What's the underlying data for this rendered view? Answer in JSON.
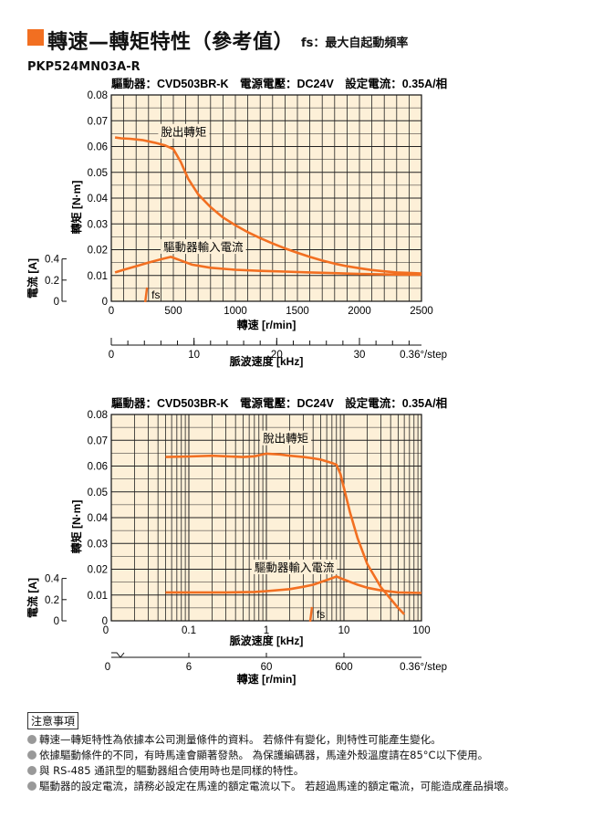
{
  "header": {
    "title": "轉速—轉矩特性（參考值）",
    "subtitle": "fs：最大自起動頻率"
  },
  "model": "PKP524MN03A-R",
  "colors": {
    "accent": "#f26f21",
    "grid_bg": "#fdf0d8",
    "curve": "#f26f21"
  },
  "notes": {
    "title": "注意事項",
    "items": [
      "轉速—轉矩特性為依據本公司測量條件的資料。 若條件有變化，則特性可能產生變化。",
      "依據驅動條件的不同，有時馬達會顯著發熱。 為保護編碼器，馬達外殼溫度請在85°C以下使用。",
      "與 RS-485 通訊型的驅動器組合使用時也是同樣的特性。",
      "驅動器的設定電流，請務必設定在馬達的額定電流以下。 若超過馬達的額定電流，可能造成產品損壞。"
    ]
  },
  "chart_data": [
    {
      "type": "line",
      "x_scale": "linear",
      "condition": "驅動器：CVD503BR-K　電源電壓：DC24V　設定電流：0.35A/相",
      "xlabel": "轉速 [r/min]",
      "ylabel": "轉矩 [N·m]",
      "y2label": "電流 [A]",
      "x2label": "脈波速度 [kHz]",
      "xlim": [
        0,
        2500
      ],
      "ylim": [
        0,
        0.08
      ],
      "y2lim": [
        0,
        0.5
      ],
      "x_ticks": [
        0,
        500,
        1000,
        1500,
        2000,
        2500
      ],
      "x_tick_labels": [
        "0",
        "500",
        "1000",
        "1500",
        "2000",
        "2500"
      ],
      "y_ticks": [
        0,
        0.01,
        0.02,
        0.03,
        0.04,
        0.05,
        0.06,
        0.07,
        0.08
      ],
      "y_tick_labels": [
        "0",
        "0.01",
        "0.02",
        "0.03",
        "0.04",
        "0.05",
        "0.06",
        "0.07",
        "0.08"
      ],
      "y2_ticks": [
        0,
        0.2,
        0.4
      ],
      "y2_tick_labels": [
        "0",
        "0.2",
        "0.4"
      ],
      "x2_ticks": [
        0,
        10,
        20,
        30
      ],
      "x2_tick_labels": [
        "0",
        "10",
        "20",
        "30"
      ],
      "x2_end_label": "0.36°/step",
      "series": [
        {
          "name": "脫出轉矩",
          "x": [
            30,
            80,
            150,
            250,
            350,
            430,
            500,
            560,
            620,
            700,
            800,
            900,
            1000,
            1100,
            1200,
            1300,
            1400,
            1500,
            1600,
            1700,
            1800,
            1900,
            2000,
            2100,
            2200,
            2300,
            2400,
            2500
          ],
          "y": [
            0.0635,
            0.0632,
            0.063,
            0.0625,
            0.0615,
            0.0605,
            0.059,
            0.054,
            0.0475,
            0.0415,
            0.0365,
            0.0325,
            0.0295,
            0.0268,
            0.0245,
            0.0224,
            0.0205,
            0.0188,
            0.0172,
            0.0158,
            0.0146,
            0.0136,
            0.0128,
            0.0121,
            0.0116,
            0.0112,
            0.011,
            0.0108
          ]
        },
        {
          "name": "驅動器輸入電流",
          "x": [
            30,
            100,
            200,
            300,
            400,
            480,
            550,
            650,
            800,
            1000,
            1200,
            1400,
            1600,
            1800,
            2000,
            2200,
            2400,
            2500
          ],
          "y": [
            0.0112,
            0.0122,
            0.0136,
            0.015,
            0.0163,
            0.0172,
            0.016,
            0.0142,
            0.013,
            0.0122,
            0.0118,
            0.0115,
            0.0112,
            0.0109,
            0.0106,
            0.0104,
            0.0103,
            0.0103
          ]
        }
      ],
      "annotations": [
        {
          "text": "脫出轉矩",
          "x": 400,
          "y": 0.0645
        },
        {
          "text": "驅動器輸入電流",
          "x": 420,
          "y": 0.0198
        },
        {
          "text": "fs",
          "x": 310,
          "y": 0.0025
        }
      ]
    },
    {
      "type": "line",
      "x_scale": "log",
      "condition": "驅動器：CVD503BR-K　電源電壓：DC24V　設定電流：0.35A/相",
      "xlabel": "脈波速度 [kHz]",
      "ylabel": "轉矩 [N·m]",
      "y2label": "電流 [A]",
      "x2label": "轉速 [r/min]",
      "xlim": [
        0.01,
        100
      ],
      "ylim": [
        0,
        0.08
      ],
      "y2lim": [
        0,
        0.5
      ],
      "x_ticks": [
        0.1,
        1,
        10,
        100
      ],
      "x_tick_labels": [
        "0.1",
        "1",
        "10",
        "100"
      ],
      "x_origin_label": "0",
      "y_ticks": [
        0,
        0.01,
        0.02,
        0.03,
        0.04,
        0.05,
        0.06,
        0.07,
        0.08
      ],
      "y_tick_labels": [
        "0",
        "0.01",
        "0.02",
        "0.03",
        "0.04",
        "0.05",
        "0.06",
        "0.07",
        "0.08"
      ],
      "y2_ticks": [
        0,
        0.2,
        0.4
      ],
      "y2_tick_labels": [
        "0",
        "0.2",
        "0.4"
      ],
      "x2_ticks": [
        6,
        60,
        600
      ],
      "x2_tick_labels": [
        "6",
        "60",
        "600"
      ],
      "x2_origin_label": "0",
      "x2_end_label": "0.36°/step",
      "series": [
        {
          "name": "脫出轉矩",
          "x": [
            0.05,
            0.1,
            0.2,
            0.3,
            0.5,
            0.7,
            1,
            1.5,
            2,
            3,
            4,
            5,
            6,
            7,
            8,
            9,
            10,
            12,
            15,
            20,
            30,
            40,
            50,
            60
          ],
          "y": [
            0.0635,
            0.0637,
            0.064,
            0.0638,
            0.0635,
            0.0638,
            0.0648,
            0.0645,
            0.064,
            0.0635,
            0.063,
            0.0625,
            0.0618,
            0.0612,
            0.0605,
            0.057,
            0.0515,
            0.042,
            0.032,
            0.022,
            0.013,
            0.0085,
            0.005,
            0.0025
          ]
        },
        {
          "name": "驅動器輸入電流",
          "x": [
            0.05,
            0.1,
            0.3,
            0.7,
            1,
            2,
            3,
            4,
            5,
            6,
            7,
            8,
            10,
            15,
            20,
            30,
            50,
            100
          ],
          "y": [
            0.011,
            0.011,
            0.011,
            0.0112,
            0.0115,
            0.0123,
            0.0132,
            0.014,
            0.015,
            0.0158,
            0.0165,
            0.0172,
            0.016,
            0.014,
            0.0128,
            0.0118,
            0.011,
            0.0108
          ]
        }
      ],
      "annotations": [
        {
          "text": "脫出轉矩",
          "x": 0.9,
          "y": 0.0695
        },
        {
          "text": "驅動器輸入電流",
          "x": 0.7,
          "y": 0.0195
        },
        {
          "text": "fs",
          "x": 4.2,
          "y": 0.0025
        }
      ]
    }
  ]
}
